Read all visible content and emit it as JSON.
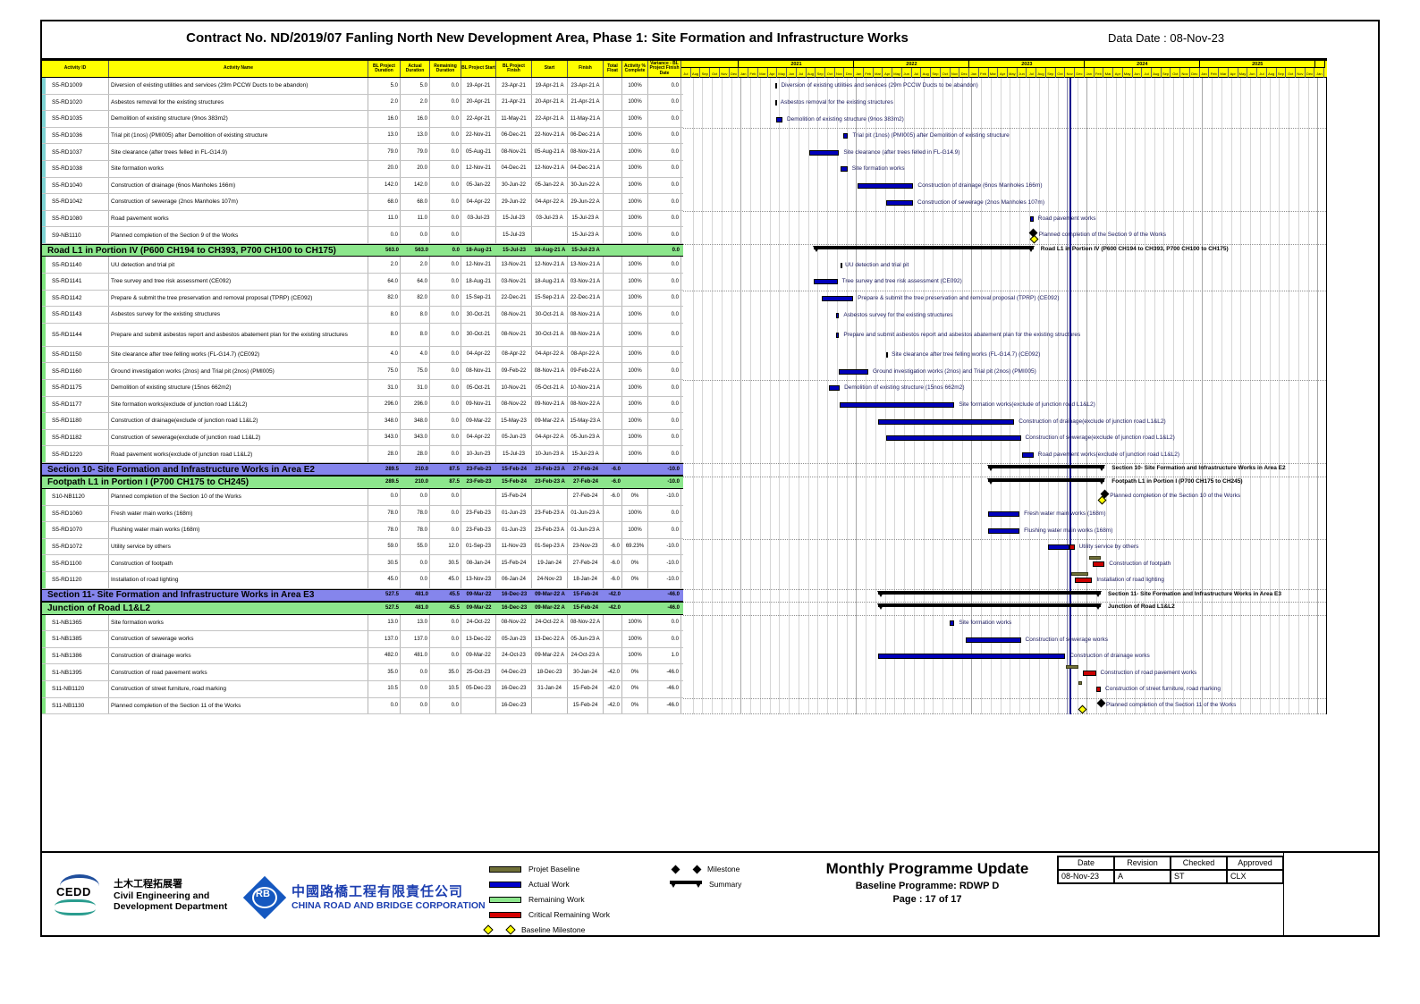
{
  "header": {
    "title": "Contract No. ND/2019/07 Fanling North New Development Area, Phase 1: Site Formation and Infrastructure Works",
    "data_date_label": "Data Date : 08-Nov-23"
  },
  "data_date": "08-Nov-23",
  "columns": [
    "Activity ID",
    "Activity Name",
    "BL Project\nDuration",
    "Actual\nDuration",
    "Remaining\nDuration",
    "BL Project Start",
    "BL Project\nFinish",
    "Start",
    "Finish",
    "Total Float",
    "Activity %\nComplete",
    "Variance - BL\nProject Finish\nDate"
  ],
  "timeline": {
    "start": "Jul-2020",
    "end": "Jan-2026",
    "month_count": 67,
    "month_labels": [
      "Jan",
      "Feb",
      "Mar",
      "Apr",
      "May",
      "Jun",
      "Jul",
      "Aug",
      "Sep",
      "Oct",
      "Nov",
      "Dec"
    ],
    "years": [
      {
        "label": "",
        "span": 6
      },
      {
        "label": "2021",
        "span": 12
      },
      {
        "label": "2022",
        "span": 12
      },
      {
        "label": "2023",
        "span": 12
      },
      {
        "label": "2024",
        "span": 12
      },
      {
        "label": "2025",
        "span": 12
      },
      {
        "label": "",
        "span": 1
      }
    ]
  },
  "rows": [
    {
      "type": "activity",
      "id": "S5-RD1009",
      "name": "Diversion of existing utilities and services (29m PCCW Ducts to be abandon)",
      "bl_dur": "5.0",
      "act_dur": "5.0",
      "rem_dur": "0.0",
      "bl_start": "19-Apr-21",
      "bl_finish": "23-Apr-21",
      "start": "19-Apr-21 A",
      "finish": "23-Apr-21 A",
      "float": "",
      "pct": "100%",
      "var": "0.0"
    },
    {
      "type": "activity",
      "id": "S5-RD1020",
      "name": "Asbestos removal for the existing structures",
      "bl_dur": "2.0",
      "act_dur": "2.0",
      "rem_dur": "0.0",
      "bl_start": "20-Apr-21",
      "bl_finish": "21-Apr-21",
      "start": "20-Apr-21 A",
      "finish": "21-Apr-21 A",
      "float": "",
      "pct": "100%",
      "var": "0.0"
    },
    {
      "type": "activity",
      "id": "S5-RD1035",
      "name": "Demolition of existing structure (9nos 383m2)",
      "bl_dur": "16.0",
      "act_dur": "16.0",
      "rem_dur": "0.0",
      "bl_start": "22-Apr-21",
      "bl_finish": "11-May-21",
      "start": "22-Apr-21 A",
      "finish": "11-May-21 A",
      "float": "",
      "pct": "100%",
      "var": "0.0"
    },
    {
      "type": "activity",
      "id": "S5-RD1036",
      "name": "Trial pit (1nos) (PMI005) after Demolition of existing structure",
      "bl_dur": "13.0",
      "act_dur": "13.0",
      "rem_dur": "0.0",
      "bl_start": "22-Nov-21",
      "bl_finish": "06-Dec-21",
      "start": "22-Nov-21 A",
      "finish": "06-Dec-21 A",
      "float": "",
      "pct": "100%",
      "var": "0.0"
    },
    {
      "type": "activity",
      "id": "S5-RD1037",
      "name": "Site clearance (after trees felled in FL-G14.9)",
      "bl_dur": "79.0",
      "act_dur": "79.0",
      "rem_dur": "0.0",
      "bl_start": "05-Aug-21",
      "bl_finish": "08-Nov-21",
      "start": "05-Aug-21 A",
      "finish": "08-Nov-21 A",
      "float": "",
      "pct": "100%",
      "var": "0.0"
    },
    {
      "type": "activity",
      "id": "S5-RD1038",
      "name": "Site formation works",
      "bl_dur": "20.0",
      "act_dur": "20.0",
      "rem_dur": "0.0",
      "bl_start": "12-Nov-21",
      "bl_finish": "04-Dec-21",
      "start": "12-Nov-21 A",
      "finish": "04-Dec-21 A",
      "float": "",
      "pct": "100%",
      "var": "0.0"
    },
    {
      "type": "activity",
      "id": "S5-RD1040",
      "name": "Construction of drainage (6nos Manholes 166m)",
      "bl_dur": "142.0",
      "act_dur": "142.0",
      "rem_dur": "0.0",
      "bl_start": "05-Jan-22",
      "bl_finish": "30-Jun-22",
      "start": "05-Jan-22 A",
      "finish": "30-Jun-22 A",
      "float": "",
      "pct": "100%",
      "var": "0.0"
    },
    {
      "type": "activity",
      "id": "S5-RD1042",
      "name": "Construction of sewerage (2nos Manholes 107m)",
      "bl_dur": "68.0",
      "act_dur": "68.0",
      "rem_dur": "0.0",
      "bl_start": "04-Apr-22",
      "bl_finish": "29-Jun-22",
      "start": "04-Apr-22 A",
      "finish": "29-Jun-22 A",
      "float": "",
      "pct": "100%",
      "var": "0.0"
    },
    {
      "type": "activity",
      "id": "S5-RD1080",
      "name": "Road pavement works",
      "bl_dur": "11.0",
      "act_dur": "11.0",
      "rem_dur": "0.0",
      "bl_start": "03-Jul-23",
      "bl_finish": "15-Jul-23",
      "start": "03-Jul-23 A",
      "finish": "15-Jul-23 A",
      "float": "",
      "pct": "100%",
      "var": "0.0"
    },
    {
      "type": "activity",
      "id": "S9-NB1110",
      "name": "Planned completion of the Section 9 of the Works",
      "bl_dur": "0.0",
      "act_dur": "0.0",
      "rem_dur": "0.0",
      "bl_start": "",
      "bl_finish": "15-Jul-23",
      "start": "",
      "finish": "15-Jul-23 A",
      "float": "",
      "pct": "100%",
      "var": "0.0",
      "milestone": true
    },
    {
      "type": "section",
      "color": "green",
      "name": "Road L1 in Portion IV (P600 CH194 to CH393, P700 CH100 to CH175)",
      "bl_dur": "563.0",
      "act_dur": "563.0",
      "rem_dur": "0.0",
      "bl_start": "18-Aug-21",
      "bl_finish": "15-Jul-23",
      "start": "18-Aug-21 A",
      "finish": "15-Jul-23 A",
      "float": "",
      "pct": "",
      "var": "0.0"
    },
    {
      "type": "activity",
      "id": "S5-RD1140",
      "name": "UU detection and trial pit",
      "bl_dur": "2.0",
      "act_dur": "2.0",
      "rem_dur": "0.0",
      "bl_start": "12-Nov-21",
      "bl_finish": "13-Nov-21",
      "start": "12-Nov-21 A",
      "finish": "13-Nov-21 A",
      "float": "",
      "pct": "100%",
      "var": "0.0"
    },
    {
      "type": "activity",
      "id": "S5-RD1141",
      "name": "Tree survey and tree risk assessment (CE092)",
      "bl_dur": "64.0",
      "act_dur": "64.0",
      "rem_dur": "0.0",
      "bl_start": "18-Aug-21",
      "bl_finish": "03-Nov-21",
      "start": "18-Aug-21 A",
      "finish": "03-Nov-21 A",
      "float": "",
      "pct": "100%",
      "var": "0.0"
    },
    {
      "type": "activity",
      "id": "S5-RD1142",
      "name": "Prepare & submit the tree preservation and removal proposal (TPRP) (CE092)",
      "bl_dur": "82.0",
      "act_dur": "82.0",
      "rem_dur": "0.0",
      "bl_start": "15-Sep-21",
      "bl_finish": "22-Dec-21",
      "start": "15-Sep-21 A",
      "finish": "22-Dec-21 A",
      "float": "",
      "pct": "100%",
      "var": "0.0"
    },
    {
      "type": "activity",
      "id": "S5-RD1143",
      "name": "Asbestos survey for the existing structures",
      "bl_dur": "8.0",
      "act_dur": "8.0",
      "rem_dur": "0.0",
      "bl_start": "30-Oct-21",
      "bl_finish": "08-Nov-21",
      "start": "30-Oct-21 A",
      "finish": "08-Nov-21 A",
      "float": "",
      "pct": "100%",
      "var": "0.0"
    },
    {
      "type": "activity",
      "id": "S5-RD1144",
      "name": "Prepare and submit asbestos report and asbestos abatement plan for the existing structures",
      "bl_dur": "8.0",
      "act_dur": "8.0",
      "rem_dur": "0.0",
      "bl_start": "30-Oct-21",
      "bl_finish": "08-Nov-21",
      "start": "30-Oct-21 A",
      "finish": "08-Nov-21 A",
      "float": "",
      "pct": "100%",
      "var": "0.0",
      "tall": true
    },
    {
      "type": "activity",
      "id": "S5-RD1150",
      "name": "Site clearance after tree felling works (FL-G14.7) (CE092)",
      "bl_dur": "4.0",
      "act_dur": "4.0",
      "rem_dur": "0.0",
      "bl_start": "04-Apr-22",
      "bl_finish": "08-Apr-22",
      "start": "04-Apr-22 A",
      "finish": "08-Apr-22 A",
      "float": "",
      "pct": "100%",
      "var": "0.0"
    },
    {
      "type": "activity",
      "id": "S5-RD1160",
      "name": "Ground investigation works (2nos) and Trial pit (2nos) (PMI005)",
      "bl_dur": "75.0",
      "act_dur": "75.0",
      "rem_dur": "0.0",
      "bl_start": "08-Nov-21",
      "bl_finish": "09-Feb-22",
      "start": "08-Nov-21 A",
      "finish": "09-Feb-22 A",
      "float": "",
      "pct": "100%",
      "var": "0.0"
    },
    {
      "type": "activity",
      "id": "S5-RD1175",
      "name": "Demolition of existing structure (15nos 662m2)",
      "bl_dur": "31.0",
      "act_dur": "31.0",
      "rem_dur": "0.0",
      "bl_start": "05-Oct-21",
      "bl_finish": "10-Nov-21",
      "start": "05-Oct-21 A",
      "finish": "10-Nov-21 A",
      "float": "",
      "pct": "100%",
      "var": "0.0"
    },
    {
      "type": "activity",
      "id": "S5-RD1177",
      "name": "Site formation works(exclude of junction road L1&L2)",
      "bl_dur": "296.0",
      "act_dur": "296.0",
      "rem_dur": "0.0",
      "bl_start": "09-Nov-21",
      "bl_finish": "08-Nov-22",
      "start": "09-Nov-21 A",
      "finish": "08-Nov-22 A",
      "float": "",
      "pct": "100%",
      "var": "0.0"
    },
    {
      "type": "activity",
      "id": "S5-RD1180",
      "name": "Construction of drainage(exclude of junction road L1&L2)",
      "bl_dur": "348.0",
      "act_dur": "348.0",
      "rem_dur": "0.0",
      "bl_start": "09-Mar-22",
      "bl_finish": "15-May-23",
      "start": "09-Mar-22 A",
      "finish": "15-May-23 A",
      "float": "",
      "pct": "100%",
      "var": "0.0"
    },
    {
      "type": "activity",
      "id": "S5-RD1182",
      "name": "Construction of sewerage(exclude of junction road L1&L2)",
      "bl_dur": "343.0",
      "act_dur": "343.0",
      "rem_dur": "0.0",
      "bl_start": "04-Apr-22",
      "bl_finish": "05-Jun-23",
      "start": "04-Apr-22 A",
      "finish": "05-Jun-23 A",
      "float": "",
      "pct": "100%",
      "var": "0.0"
    },
    {
      "type": "activity",
      "id": "S5-RD1220",
      "name": "Road pavement works(exclude of junction road L1&L2)",
      "bl_dur": "28.0",
      "act_dur": "28.0",
      "rem_dur": "0.0",
      "bl_start": "10-Jun-23",
      "bl_finish": "15-Jul-23",
      "start": "10-Jun-23 A",
      "finish": "15-Jul-23 A",
      "float": "",
      "pct": "100%",
      "var": "0.0"
    },
    {
      "type": "section",
      "color": "blue",
      "name": "Section 10- Site Formation and Infrastructure Works in Area E2",
      "bl_dur": "289.5",
      "act_dur": "210.0",
      "rem_dur": "87.5",
      "bl_start": "23-Feb-23",
      "bl_finish": "15-Feb-24",
      "start": "23-Feb-23 A",
      "finish": "27-Feb-24",
      "float": "-6.0",
      "pct": "",
      "var": "-10.0"
    },
    {
      "type": "section",
      "color": "green",
      "name": "Footpath L1 in Portion I (P700 CH175 to CH245)",
      "bl_dur": "289.5",
      "act_dur": "210.0",
      "rem_dur": "87.5",
      "bl_start": "23-Feb-23",
      "bl_finish": "15-Feb-24",
      "start": "23-Feb-23 A",
      "finish": "27-Feb-24",
      "float": "-6.0",
      "pct": "",
      "var": "-10.0"
    },
    {
      "type": "activity",
      "id": "S10-NB1120",
      "name": "Planned completion of the Section 10 of the Works",
      "bl_dur": "0.0",
      "act_dur": "0.0",
      "rem_dur": "0.0",
      "bl_start": "",
      "bl_finish": "15-Feb-24",
      "start": "",
      "finish": "27-Feb-24",
      "float": "-6.0",
      "pct": "0%",
      "var": "-10.0",
      "milestone": true
    },
    {
      "type": "activity",
      "id": "S5-RD1060",
      "name": "Fresh water main works (168m)",
      "bl_dur": "78.0",
      "act_dur": "78.0",
      "rem_dur": "0.0",
      "bl_start": "23-Feb-23",
      "bl_finish": "01-Jun-23",
      "start": "23-Feb-23 A",
      "finish": "01-Jun-23 A",
      "float": "",
      "pct": "100%",
      "var": "0.0"
    },
    {
      "type": "activity",
      "id": "S5-RD1070",
      "name": "Flushing water main works (168m)",
      "bl_dur": "78.0",
      "act_dur": "78.0",
      "rem_dur": "0.0",
      "bl_start": "23-Feb-23",
      "bl_finish": "01-Jun-23",
      "start": "23-Feb-23 A",
      "finish": "01-Jun-23 A",
      "float": "",
      "pct": "100%",
      "var": "0.0"
    },
    {
      "type": "activity",
      "id": "S5-RD1072",
      "name": "Utility service by others",
      "bl_dur": "59.0",
      "act_dur": "55.0",
      "rem_dur": "12.0",
      "bl_start": "01-Sep-23",
      "bl_finish": "11-Nov-23",
      "start": "01-Sep-23 A",
      "finish": "23-Nov-23",
      "float": "-6.0",
      "pct": "69.23%",
      "var": "-10.0"
    },
    {
      "type": "activity",
      "id": "S5-RD1100",
      "name": "Construction of footpath",
      "bl_dur": "30.5",
      "act_dur": "0.0",
      "rem_dur": "30.5",
      "bl_start": "08-Jan-24",
      "bl_finish": "15-Feb-24",
      "start": "19-Jan-24",
      "finish": "27-Feb-24",
      "float": "-6.0",
      "pct": "0%",
      "var": "-10.0"
    },
    {
      "type": "activity",
      "id": "S5-RD1120",
      "name": "Installation of road lighting",
      "bl_dur": "45.0",
      "act_dur": "0.0",
      "rem_dur": "45.0",
      "bl_start": "13-Nov-23",
      "bl_finish": "06-Jan-24",
      "start": "24-Nov-23",
      "finish": "18-Jan-24",
      "float": "-6.0",
      "pct": "0%",
      "var": "-10.0"
    },
    {
      "type": "section",
      "color": "blue",
      "name": "Section 11- Site Formation and Infrastructure Works in Area E3",
      "bl_dur": "527.5",
      "act_dur": "481.0",
      "rem_dur": "45.5",
      "bl_start": "09-Mar-22",
      "bl_finish": "16-Dec-23",
      "start": "09-Mar-22 A",
      "finish": "15-Feb-24",
      "float": "-42.0",
      "pct": "",
      "var": "-46.0"
    },
    {
      "type": "section",
      "color": "green",
      "name": "Junction of Road L1&L2",
      "bl_dur": "527.5",
      "act_dur": "481.0",
      "rem_dur": "45.5",
      "bl_start": "09-Mar-22",
      "bl_finish": "16-Dec-23",
      "start": "09-Mar-22 A",
      "finish": "15-Feb-24",
      "float": "-42.0",
      "pct": "",
      "var": "-46.0"
    },
    {
      "type": "activity",
      "id": "S1-NB1365",
      "name": "Site formation works",
      "bl_dur": "13.0",
      "act_dur": "13.0",
      "rem_dur": "0.0",
      "bl_start": "24-Oct-22",
      "bl_finish": "08-Nov-22",
      "start": "24-Oct-22 A",
      "finish": "08-Nov-22 A",
      "float": "",
      "pct": "100%",
      "var": "0.0"
    },
    {
      "type": "activity",
      "id": "S1-NB1385",
      "name": "Construction of sewerage works",
      "bl_dur": "137.0",
      "act_dur": "137.0",
      "rem_dur": "0.0",
      "bl_start": "13-Dec-22",
      "bl_finish": "05-Jun-23",
      "start": "13-Dec-22 A",
      "finish": "05-Jun-23 A",
      "float": "",
      "pct": "100%",
      "var": "0.0"
    },
    {
      "type": "activity",
      "id": "S1-NB1386",
      "name": "Construction of drainage works",
      "bl_dur": "482.0",
      "act_dur": "481.0",
      "rem_dur": "0.0",
      "bl_start": "09-Mar-22",
      "bl_finish": "24-Oct-23",
      "start": "09-Mar-22 A",
      "finish": "24-Oct-23 A",
      "float": "",
      "pct": "100%",
      "var": "1.0"
    },
    {
      "type": "activity",
      "id": "S1-NB1395",
      "name": "Construction of road pavement works",
      "bl_dur": "35.0",
      "act_dur": "0.0",
      "rem_dur": "35.0",
      "bl_start": "25-Oct-23",
      "bl_finish": "04-Dec-23",
      "start": "18-Dec-23",
      "finish": "30-Jan-24",
      "float": "-42.0",
      "pct": "0%",
      "var": "-46.0"
    },
    {
      "type": "activity",
      "id": "S11-NB1120",
      "name": "Construction of street furniture, road marking",
      "bl_dur": "10.5",
      "act_dur": "0.0",
      "rem_dur": "10.5",
      "bl_start": "05-Dec-23",
      "bl_finish": "16-Dec-23",
      "start": "31-Jan-24",
      "finish": "15-Feb-24",
      "float": "-42.0",
      "pct": "0%",
      "var": "-46.0"
    },
    {
      "type": "activity",
      "id": "S11-NB1130",
      "name": "Planned completion of the Section 11 of the Works",
      "bl_dur": "0.0",
      "act_dur": "0.0",
      "rem_dur": "0.0",
      "bl_start": "",
      "bl_finish": "16-Dec-23",
      "start": "",
      "finish": "15-Feb-24",
      "float": "-42.0",
      "pct": "0%",
      "var": "-46.0",
      "milestone": true
    }
  ],
  "legend": {
    "col1": [
      {
        "swatch": "bar",
        "color": "#6f6f37",
        "label": "Projet Baseline"
      },
      {
        "swatch": "bar",
        "color": "#0000cc",
        "label": "Actual Work"
      },
      {
        "swatch": "bar",
        "color": "#8ce68c",
        "label": "Remaining Work"
      },
      {
        "swatch": "bar",
        "color": "#d40000",
        "label": "Critical Remaining Work"
      },
      {
        "swatch": "diamond-yellow",
        "color": "#ffff00",
        "label": "Baseline Milestone"
      }
    ],
    "col2": [
      {
        "swatch": "diamond-black",
        "color": "#000000",
        "label": "Milestone"
      },
      {
        "swatch": "summary",
        "color": "#000000",
        "label": "Summary"
      }
    ]
  },
  "footer": {
    "cedd": {
      "abbr": "CEDD",
      "cn": "土木工程拓展署",
      "en1": "Civil Engineering and",
      "en2": "Development Department"
    },
    "crbc": {
      "abbr": "RB",
      "cn": "中國路橋工程有限責任公司",
      "en": "CHINA ROAD AND BRIDGE CORPORATION"
    },
    "program": {
      "line1": "Monthly Programme Update",
      "line2": "Baseline Programme: RDWP D",
      "line3": "Page : 17 of 17"
    },
    "approval": {
      "headers": [
        "Date",
        "Revision",
        "Checked",
        "Approved"
      ],
      "values": [
        "08-Nov-23",
        "A",
        "ST",
        "CLX"
      ]
    }
  },
  "colors": {
    "header_bg": "#ffff00",
    "section_green": "#8ce68c",
    "section_blue": "#8585ec",
    "strip_cyan": "#7fd4d4",
    "strip_green": "#7fe57f",
    "actual": "#0000bb",
    "critical": "#cc0000",
    "baseline": "#6f6f37",
    "summary": "#000000",
    "data_date_line": "#00008b"
  }
}
